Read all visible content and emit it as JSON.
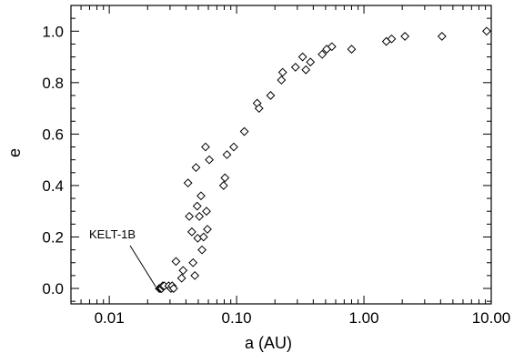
{
  "chart_data": {
    "type": "scatter",
    "xlabel": "a (AU)",
    "ylabel": "e",
    "xscale": "log",
    "xlim": [
      0.005,
      10.0
    ],
    "ylim": [
      -0.06,
      1.1
    ],
    "xticks": [
      0.01,
      0.1,
      1.0,
      10.0
    ],
    "xtick_labels": [
      "0.01",
      "0.10",
      "1.00",
      "10.00"
    ],
    "yticks": [
      0.0,
      0.2,
      0.4,
      0.6,
      0.8,
      1.0
    ],
    "ytick_labels": [
      "0.0",
      "0.2",
      "0.4",
      "0.6",
      "0.8",
      "1.0"
    ],
    "grid": false,
    "marker": "open-diamond",
    "annotation": {
      "text": "KELT-1B",
      "x": 0.0247,
      "y": 0.0
    },
    "points": [
      [
        0.0247,
        0.0
      ],
      [
        0.0252,
        0.0
      ],
      [
        0.0258,
        0.0
      ],
      [
        0.0263,
        0.01
      ],
      [
        0.027,
        0.01
      ],
      [
        0.0293,
        0.01
      ],
      [
        0.0305,
        0.0
      ],
      [
        0.0312,
        0.01
      ],
      [
        0.032,
        0.0
      ],
      [
        0.0334,
        0.105
      ],
      [
        0.037,
        0.04
      ],
      [
        0.038,
        0.07
      ],
      [
        0.0415,
        0.41
      ],
      [
        0.0425,
        0.28
      ],
      [
        0.0445,
        0.22
      ],
      [
        0.0455,
        0.1
      ],
      [
        0.047,
        0.05
      ],
      [
        0.048,
        0.47
      ],
      [
        0.049,
        0.32
      ],
      [
        0.0495,
        0.195
      ],
      [
        0.051,
        0.28
      ],
      [
        0.0525,
        0.36
      ],
      [
        0.0535,
        0.15
      ],
      [
        0.055,
        0.2
      ],
      [
        0.057,
        0.55
      ],
      [
        0.058,
        0.3
      ],
      [
        0.059,
        0.23
      ],
      [
        0.061,
        0.5
      ],
      [
        0.079,
        0.4
      ],
      [
        0.081,
        0.43
      ],
      [
        0.084,
        0.52
      ],
      [
        0.095,
        0.55
      ],
      [
        0.115,
        0.61
      ],
      [
        0.145,
        0.72
      ],
      [
        0.15,
        0.7
      ],
      [
        0.185,
        0.75
      ],
      [
        0.225,
        0.81
      ],
      [
        0.23,
        0.84
      ],
      [
        0.29,
        0.86
      ],
      [
        0.33,
        0.9
      ],
      [
        0.35,
        0.85
      ],
      [
        0.38,
        0.88
      ],
      [
        0.47,
        0.91
      ],
      [
        0.51,
        0.93
      ],
      [
        0.56,
        0.94
      ],
      [
        0.8,
        0.93
      ],
      [
        1.5,
        0.96
      ],
      [
        1.65,
        0.97
      ],
      [
        2.1,
        0.98
      ],
      [
        4.1,
        0.98
      ],
      [
        9.2,
        1.0
      ]
    ]
  }
}
